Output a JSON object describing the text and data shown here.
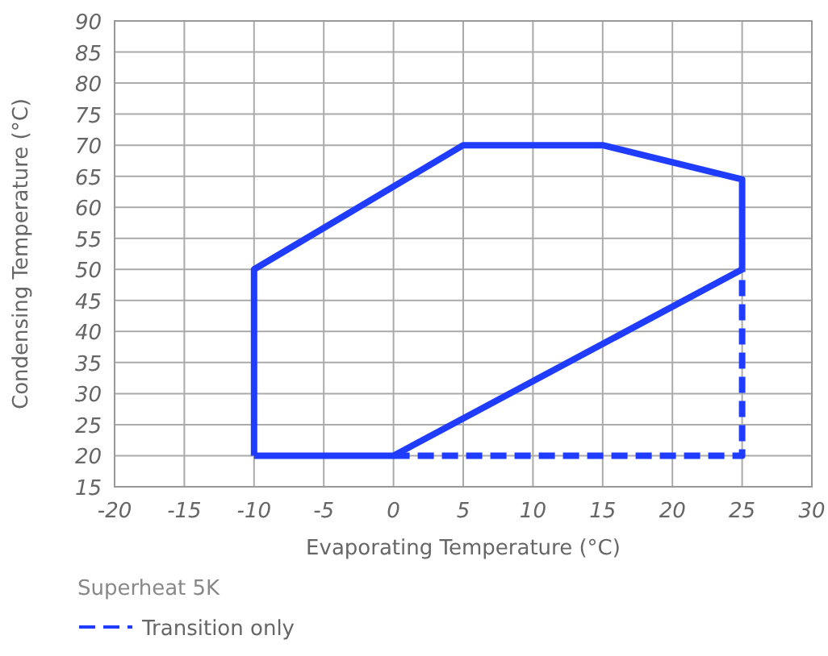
{
  "chart_data": {
    "type": "line",
    "xlabel": "Evaporating Temperature (°C)",
    "ylabel": "Condensing Temperature (°C)",
    "legend_title": "Superheat 5K",
    "legend": "bottom",
    "grid": true,
    "marker": "none",
    "xlim": [
      -20,
      30
    ],
    "xticks": [
      -20,
      -15,
      -10,
      -5,
      0,
      5,
      10,
      15,
      20,
      25,
      30
    ],
    "ylim": [
      15,
      90
    ],
    "yticks": [
      15,
      20,
      25,
      30,
      35,
      40,
      45,
      50,
      55,
      60,
      65,
      70,
      75,
      80,
      85,
      90
    ],
    "series": [
      {
        "color": "#1f3cff",
        "line_style": "solid",
        "x": [
          -10,
          -10,
          5,
          15,
          25,
          25
        ],
        "values": [
          20,
          50,
          70,
          70,
          64.5,
          50
        ]
      },
      {
        "color": "#1f3cff",
        "line_style": "solid",
        "x": [
          -10,
          0,
          25
        ],
        "values": [
          20,
          20,
          50
        ]
      },
      {
        "name": "Transition only",
        "color": "#1f3cff",
        "line_style": "dashed",
        "x": [
          0,
          25,
          25
        ],
        "values": [
          20,
          20,
          50
        ]
      }
    ]
  }
}
